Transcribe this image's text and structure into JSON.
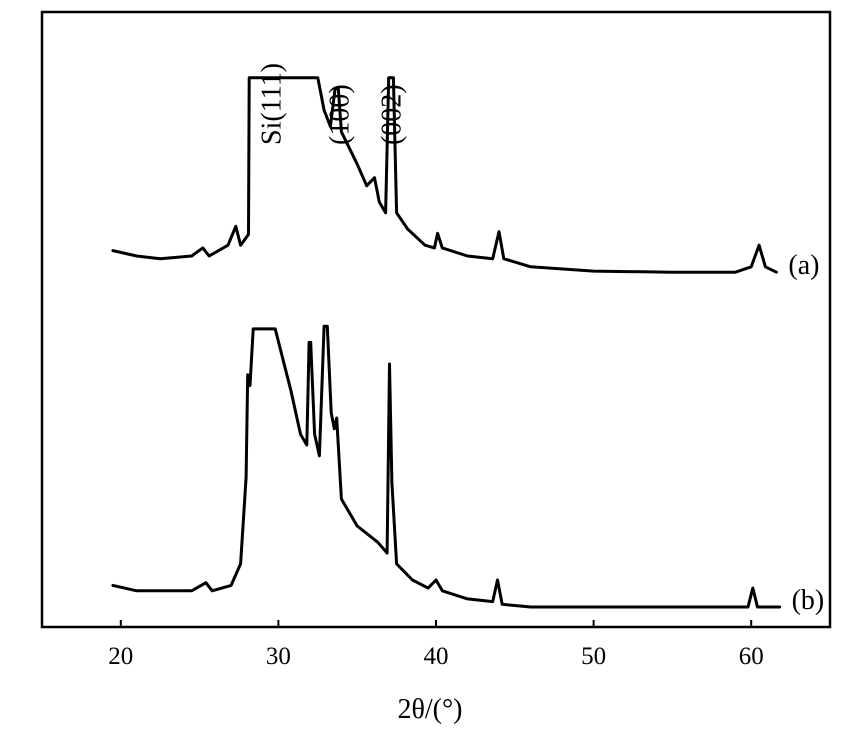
{
  "chart_data": {
    "type": "line",
    "title": "",
    "xlabel": "2θ/(°)",
    "ylabel": "",
    "xlim": [
      15,
      65
    ],
    "x_ticks": [
      20,
      30,
      40,
      50,
      60
    ],
    "grid": false,
    "annotations": [
      {
        "text": "Si(111)",
        "x": 29.5
      },
      {
        "text": "(100)",
        "x": 33.8
      },
      {
        "text": "(002)",
        "x": 37.1
      }
    ],
    "series": [
      {
        "name": "(a)",
        "offset": 0.62,
        "points": [
          [
            19.5,
            0.04
          ],
          [
            21,
            0.03
          ],
          [
            22.5,
            0.025
          ],
          [
            24.5,
            0.03
          ],
          [
            25.2,
            0.045
          ],
          [
            25.6,
            0.03
          ],
          [
            26.8,
            0.05
          ],
          [
            27.3,
            0.085
          ],
          [
            27.6,
            0.05
          ],
          [
            28.1,
            0.07
          ],
          [
            28.15,
            0.36
          ],
          [
            28.3,
            0.36
          ],
          [
            32.5,
            0.36
          ],
          [
            32.9,
            0.3
          ],
          [
            33.3,
            0.27
          ],
          [
            33.6,
            0.34
          ],
          [
            33.8,
            0.34
          ],
          [
            34.0,
            0.26
          ],
          [
            35.0,
            0.2
          ],
          [
            35.6,
            0.16
          ],
          [
            36.1,
            0.175
          ],
          [
            36.4,
            0.13
          ],
          [
            36.8,
            0.11
          ],
          [
            37.0,
            0.36
          ],
          [
            37.3,
            0.36
          ],
          [
            37.5,
            0.11
          ],
          [
            38.2,
            0.08
          ],
          [
            39.3,
            0.05
          ],
          [
            39.9,
            0.045
          ],
          [
            40.1,
            0.072
          ],
          [
            40.4,
            0.045
          ],
          [
            42,
            0.03
          ],
          [
            43.6,
            0.025
          ],
          [
            44,
            0.075
          ],
          [
            44.3,
            0.025
          ],
          [
            46,
            0.01
          ],
          [
            50,
            0.002
          ],
          [
            55,
            0.0
          ],
          [
            59,
            0.0
          ],
          [
            60,
            0.01
          ],
          [
            60.5,
            0.05
          ],
          [
            60.9,
            0.01
          ],
          [
            61.6,
            0.0
          ]
        ]
      },
      {
        "name": "(b)",
        "offset": 0.0,
        "points": [
          [
            19.5,
            0.04
          ],
          [
            21,
            0.03
          ],
          [
            22.5,
            0.03
          ],
          [
            24.5,
            0.03
          ],
          [
            25.4,
            0.045
          ],
          [
            25.8,
            0.03
          ],
          [
            27.0,
            0.04
          ],
          [
            27.6,
            0.08
          ],
          [
            27.95,
            0.24
          ],
          [
            28.05,
            0.43
          ],
          [
            28.2,
            0.41
          ],
          [
            28.4,
            0.515
          ],
          [
            29.8,
            0.515
          ],
          [
            30.8,
            0.4
          ],
          [
            31.4,
            0.32
          ],
          [
            31.8,
            0.3
          ],
          [
            31.95,
            0.49
          ],
          [
            32.05,
            0.49
          ],
          [
            32.3,
            0.32
          ],
          [
            32.6,
            0.28
          ],
          [
            32.9,
            0.52
          ],
          [
            33.1,
            0.52
          ],
          [
            33.35,
            0.36
          ],
          [
            33.55,
            0.33
          ],
          [
            33.7,
            0.35
          ],
          [
            34.0,
            0.2
          ],
          [
            35.0,
            0.15
          ],
          [
            36.3,
            0.12
          ],
          [
            36.9,
            0.1
          ],
          [
            37.05,
            0.45
          ],
          [
            37.2,
            0.23
          ],
          [
            37.5,
            0.08
          ],
          [
            38.5,
            0.05
          ],
          [
            39.5,
            0.035
          ],
          [
            40.0,
            0.05
          ],
          [
            40.4,
            0.03
          ],
          [
            42,
            0.015
          ],
          [
            43.6,
            0.01
          ],
          [
            43.9,
            0.05
          ],
          [
            44.2,
            0.005
          ],
          [
            46,
            0.0
          ],
          [
            55,
            0.0
          ],
          [
            59.8,
            0.0
          ],
          [
            60.1,
            0.035
          ],
          [
            60.4,
            0.0
          ],
          [
            61.8,
            0.0
          ]
        ]
      }
    ]
  }
}
